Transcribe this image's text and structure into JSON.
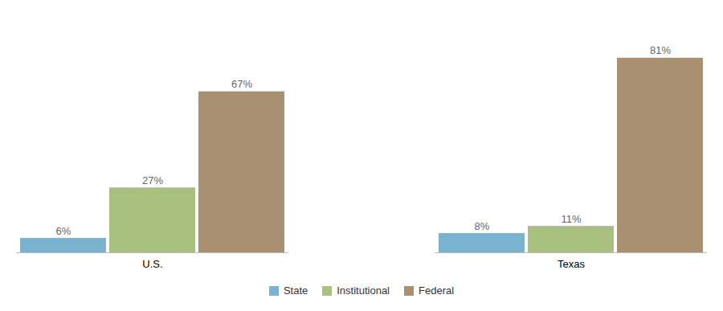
{
  "chart_data": {
    "type": "bar",
    "categories": [
      "U.S.",
      "Texas"
    ],
    "series": [
      {
        "name": "State",
        "color": "#7ab3d0",
        "values": [
          6,
          8
        ],
        "value_labels": [
          "6%",
          "8%"
        ]
      },
      {
        "name": "Institutional",
        "color": "#a8c17e",
        "values": [
          27,
          11
        ],
        "value_labels": [
          "27%",
          "11%"
        ]
      },
      {
        "name": "Federal",
        "color": "#a89070",
        "values": [
          67,
          81
        ],
        "value_labels": [
          "67%",
          "81%"
        ]
      }
    ],
    "ylim": [
      0,
      95
    ],
    "grid": false,
    "legend": "bottom",
    "data_labels": true,
    "tick_labels": "x"
  }
}
